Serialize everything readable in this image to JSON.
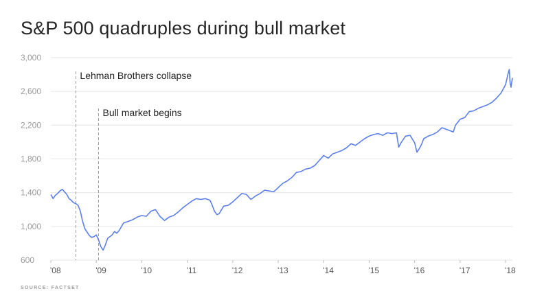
{
  "title": "S&P 500 quadruples during bull market",
  "source": "SOURCE: FACTSET",
  "chart_data": {
    "type": "line",
    "title": "S&P 500 quadruples during bull market",
    "xlabel": "",
    "ylabel": "",
    "ylim": [
      600,
      3000
    ],
    "xlim": [
      2008.0,
      2018.15
    ],
    "yticks": [
      "600",
      "1,000",
      "1,400",
      "1,800",
      "2,200",
      "2,600",
      "3,000"
    ],
    "xticks": [
      "'08",
      "'09",
      "'10",
      "'11",
      "'12",
      "'13",
      "'14",
      "'15",
      "'16",
      "'17",
      "'18"
    ],
    "grid": "horizontal",
    "line_color": "#5b7fe8",
    "series": [
      {
        "name": "",
        "x": [
          2008.0,
          2008.05,
          2008.1,
          2008.15,
          2008.2,
          2008.25,
          2008.3,
          2008.35,
          2008.4,
          2008.45,
          2008.5,
          2008.55,
          2008.6,
          2008.65,
          2008.7,
          2008.75,
          2008.8,
          2008.85,
          2008.9,
          2008.95,
          2009.0,
          2009.05,
          2009.1,
          2009.15,
          2009.2,
          2009.25,
          2009.3,
          2009.35,
          2009.4,
          2009.45,
          2009.5,
          2009.6,
          2009.7,
          2009.8,
          2009.9,
          2010.0,
          2010.1,
          2010.2,
          2010.3,
          2010.4,
          2010.5,
          2010.6,
          2010.7,
          2010.8,
          2010.9,
          2011.0,
          2011.1,
          2011.2,
          2011.3,
          2011.4,
          2011.5,
          2011.55,
          2011.6,
          2011.65,
          2011.7,
          2011.8,
          2011.9,
          2012.0,
          2012.1,
          2012.2,
          2012.3,
          2012.4,
          2012.5,
          2012.6,
          2012.7,
          2012.8,
          2012.9,
          2013.0,
          2013.1,
          2013.2,
          2013.3,
          2013.4,
          2013.5,
          2013.6,
          2013.7,
          2013.8,
          2013.9,
          2014.0,
          2014.1,
          2014.2,
          2014.3,
          2014.4,
          2014.5,
          2014.6,
          2014.7,
          2014.8,
          2014.9,
          2015.0,
          2015.1,
          2015.2,
          2015.3,
          2015.4,
          2015.5,
          2015.6,
          2015.65,
          2015.7,
          2015.8,
          2015.9,
          2016.0,
          2016.05,
          2016.1,
          2016.15,
          2016.2,
          2016.3,
          2016.4,
          2016.5,
          2016.6,
          2016.7,
          2016.8,
          2016.85,
          2016.9,
          2017.0,
          2017.1,
          2017.2,
          2017.3,
          2017.4,
          2017.5,
          2017.6,
          2017.7,
          2017.8,
          2017.9,
          2018.0,
          2018.05,
          2018.08,
          2018.1,
          2018.12,
          2018.15
        ],
        "values": [
          1378,
          1330,
          1370,
          1390,
          1420,
          1440,
          1410,
          1380,
          1330,
          1310,
          1280,
          1270,
          1250,
          1180,
          1060,
          970,
          930,
          890,
          870,
          880,
          900,
          840,
          760,
          720,
          780,
          860,
          880,
          900,
          940,
          920,
          950,
          1040,
          1060,
          1080,
          1110,
          1130,
          1120,
          1180,
          1200,
          1120,
          1070,
          1110,
          1130,
          1170,
          1220,
          1260,
          1300,
          1330,
          1320,
          1330,
          1310,
          1250,
          1180,
          1140,
          1150,
          1240,
          1250,
          1290,
          1340,
          1390,
          1380,
          1320,
          1360,
          1390,
          1430,
          1420,
          1410,
          1460,
          1510,
          1540,
          1580,
          1640,
          1650,
          1680,
          1690,
          1720,
          1780,
          1840,
          1810,
          1860,
          1880,
          1900,
          1930,
          1980,
          1960,
          2000,
          2040,
          2070,
          2090,
          2100,
          2080,
          2110,
          2100,
          2110,
          1940,
          1990,
          2070,
          2080,
          1990,
          1880,
          1920,
          1970,
          2040,
          2070,
          2090,
          2120,
          2170,
          2150,
          2130,
          2120,
          2200,
          2270,
          2290,
          2360,
          2370,
          2400,
          2420,
          2440,
          2470,
          2520,
          2580,
          2680,
          2800,
          2860,
          2700,
          2650,
          2760
        ]
      }
    ],
    "annotations": [
      {
        "x": 2008.55,
        "label": "Lehman Brothers collapse"
      },
      {
        "x": 2009.05,
        "label": "Bull market begins"
      }
    ]
  }
}
